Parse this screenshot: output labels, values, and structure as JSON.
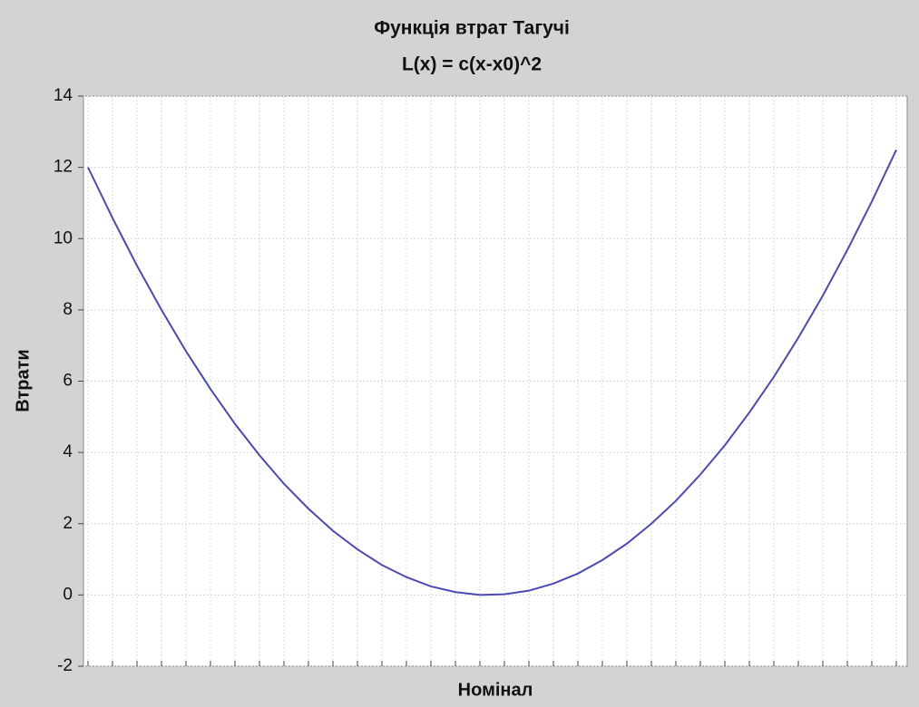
{
  "chart_data": {
    "type": "line",
    "title": "Функція втрат Тагучі",
    "subtitle": "L(x) = c(x-x0)^2",
    "x_label": "Номінал",
    "y_label": "Втрати",
    "categories": [
      null,
      null,
      null,
      null,
      null,
      null,
      null,
      null,
      null,
      null,
      null,
      null,
      null,
      null,
      null,
      null,
      null,
      null,
      null,
      null,
      null,
      null,
      null,
      null,
      null,
      null,
      null,
      null,
      null,
      null,
      null,
      null,
      null,
      null
    ],
    "values": [
      12.0,
      10.58,
      9.24,
      8.0,
      6.84,
      5.78,
      4.8,
      3.92,
      3.12,
      2.42,
      1.8,
      1.28,
      0.84,
      0.5,
      0.24,
      0.08,
      0.0,
      0.02,
      0.12,
      0.32,
      0.6,
      0.98,
      1.44,
      2.0,
      2.64,
      3.38,
      4.2,
      5.12,
      6.12,
      7.22,
      8.4,
      9.68,
      11.04,
      12.49
    ],
    "color": "#4a4ab8",
    "ylim": [
      -2,
      14
    ],
    "yticks": [
      -2,
      0,
      2,
      4,
      6,
      8,
      10,
      12,
      14
    ],
    "grid": true
  }
}
